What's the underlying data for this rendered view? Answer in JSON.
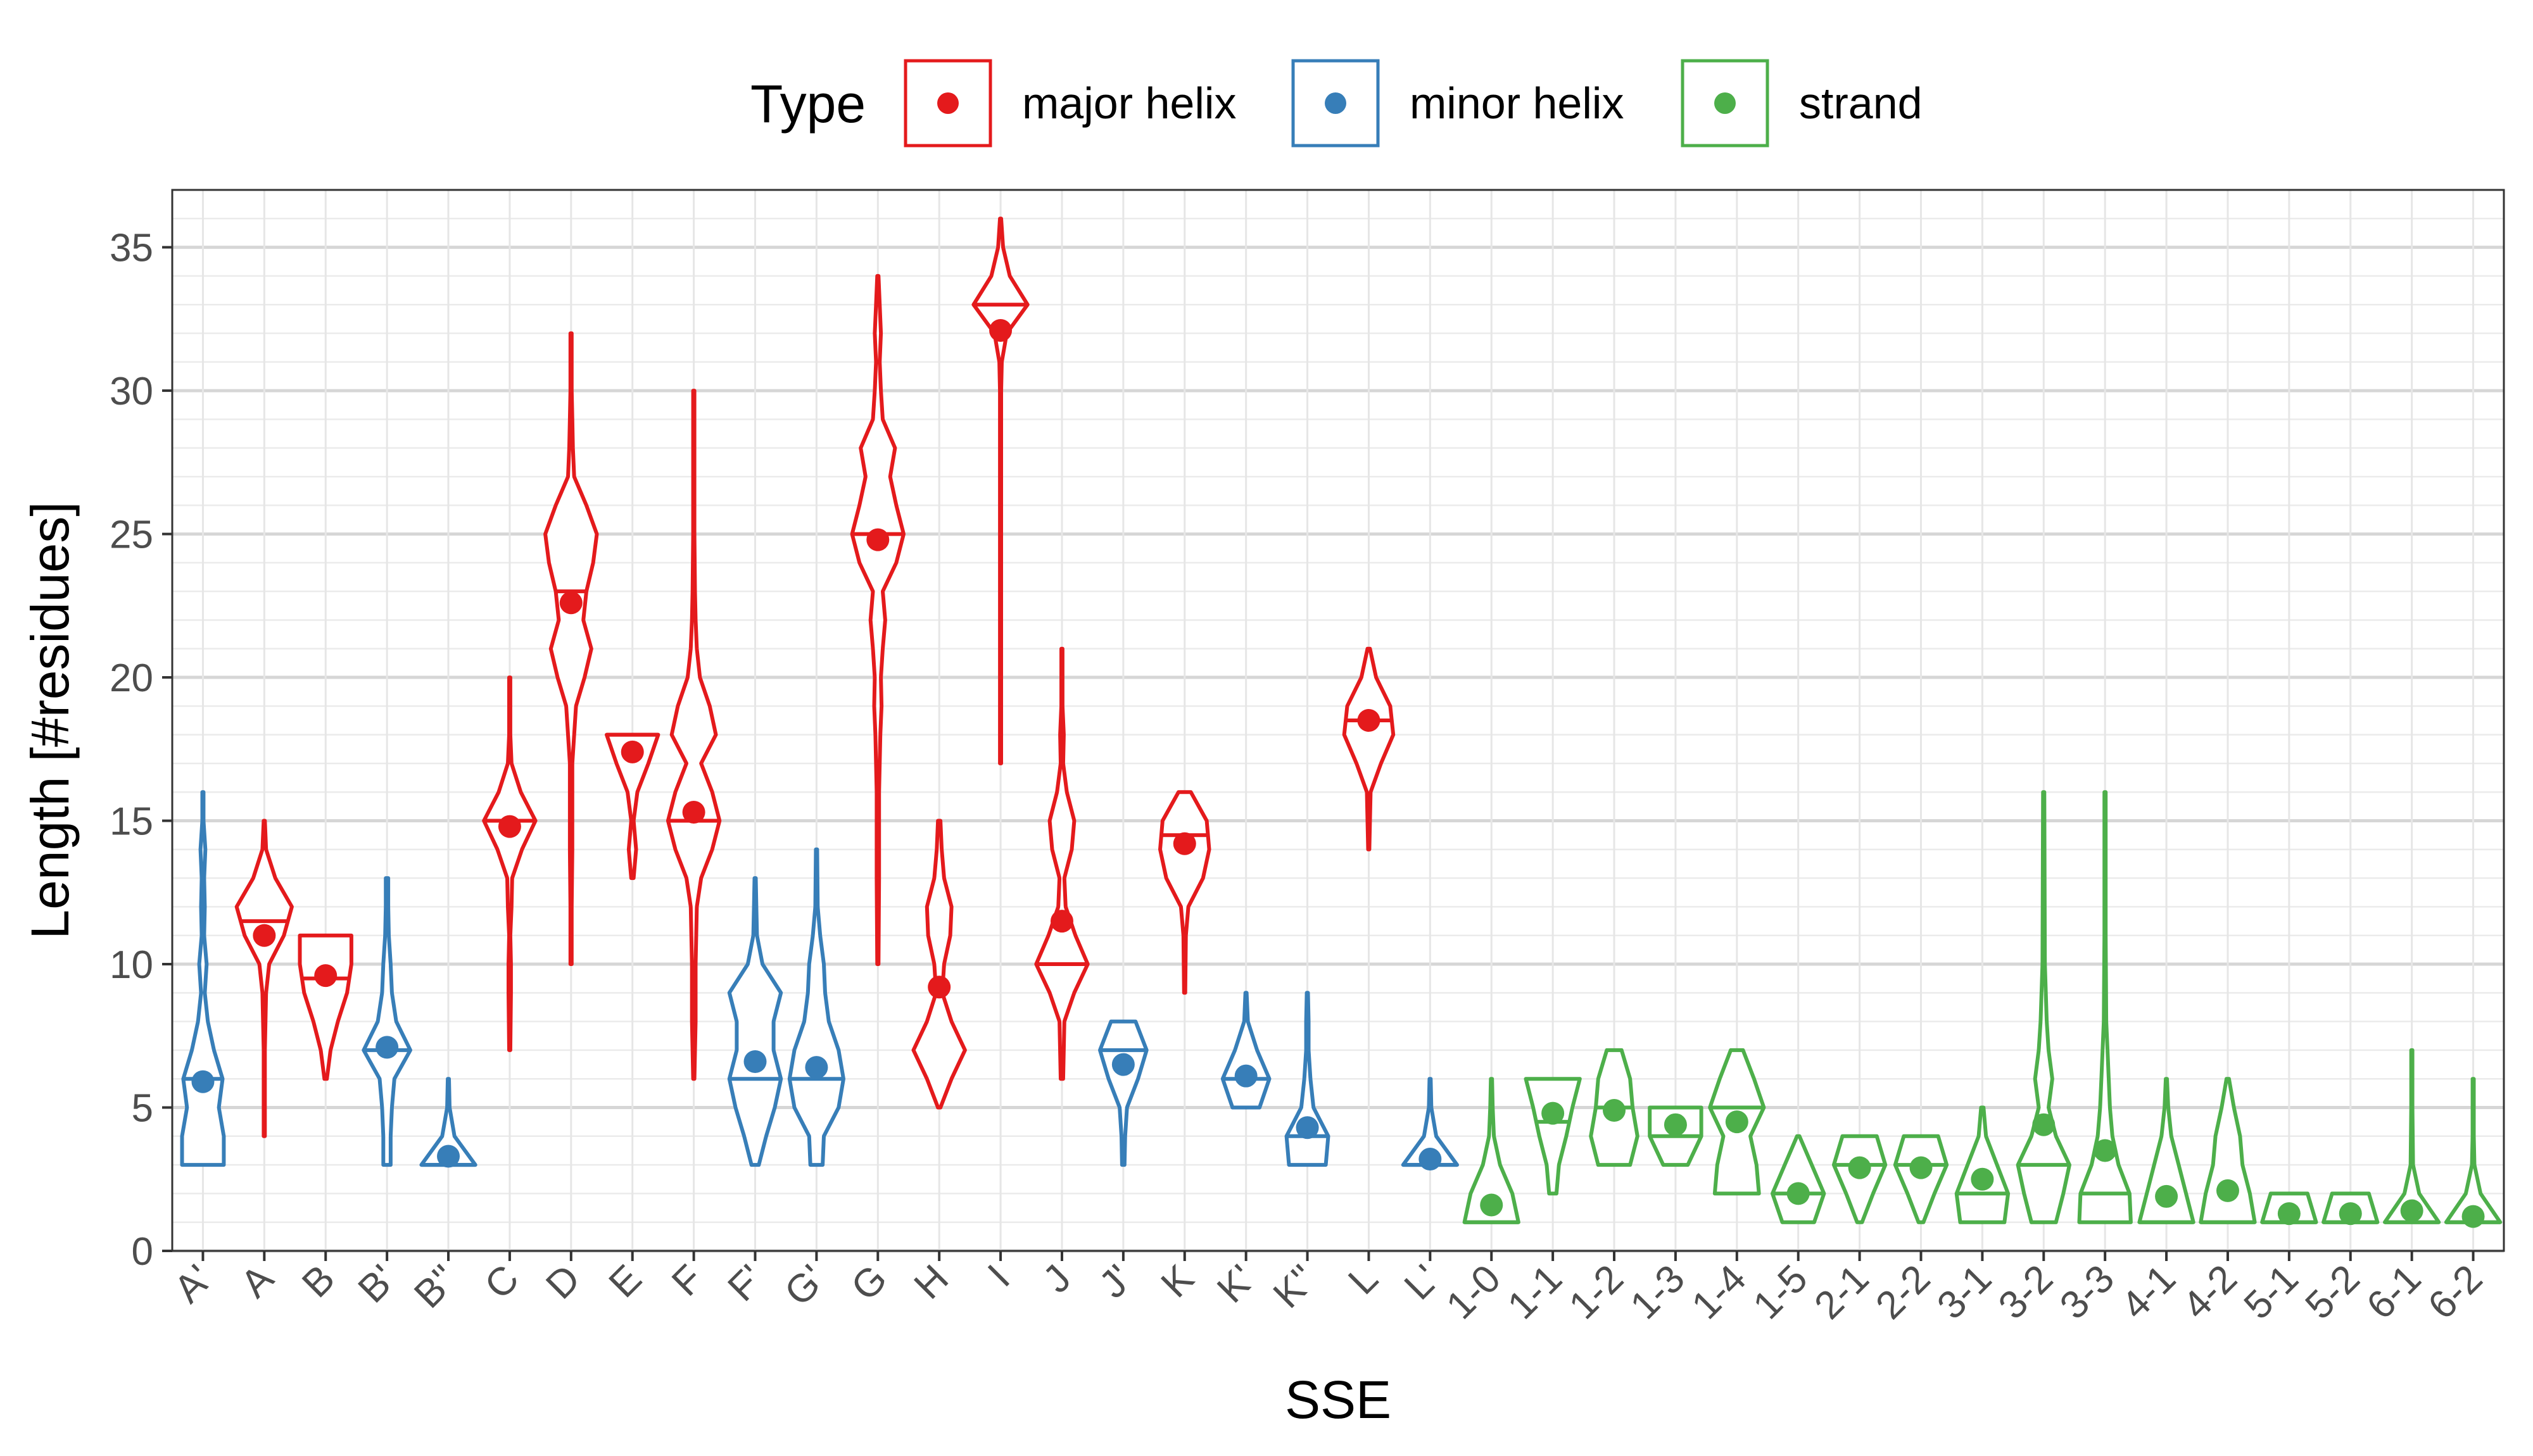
{
  "chart_data": {
    "type": "violin",
    "title": "",
    "xlabel": "SSE",
    "ylabel": "Length [#residues]",
    "ylim": [
      0,
      37
    ],
    "yticks": [
      0,
      5,
      10,
      15,
      20,
      25,
      30,
      35
    ],
    "grid": true,
    "legend": {
      "title": "Type",
      "position": "top",
      "entries": [
        {
          "label": "major helix",
          "color": "#E41A1C"
        },
        {
          "label": "minor helix",
          "color": "#377EB8"
        },
        {
          "label": "strand",
          "color": "#4DAF4A"
        }
      ]
    },
    "categories": [
      "A'",
      "A",
      "B",
      "B'",
      "B''",
      "C",
      "D",
      "E",
      "F",
      "F'",
      "G'",
      "G",
      "H",
      "I",
      "J",
      "J'",
      "K",
      "K'",
      "K''",
      "L",
      "L'",
      "1-0",
      "1-1",
      "1-2",
      "1-3",
      "1-4",
      "1-5",
      "2-1",
      "2-2",
      "3-1",
      "3-2",
      "3-3",
      "4-1",
      "4-2",
      "5-1",
      "5-2",
      "6-1",
      "6-2"
    ],
    "category_types": [
      "minor helix",
      "major helix",
      "major helix",
      "minor helix",
      "minor helix",
      "major helix",
      "major helix",
      "major helix",
      "major helix",
      "minor helix",
      "minor helix",
      "major helix",
      "major helix",
      "major helix",
      "major helix",
      "minor helix",
      "major helix",
      "minor helix",
      "minor helix",
      "major helix",
      "minor helix",
      "strand",
      "strand",
      "strand",
      "strand",
      "strand",
      "strand",
      "strand",
      "strand",
      "strand",
      "strand",
      "strand",
      "strand",
      "strand",
      "strand",
      "strand",
      "strand",
      "strand"
    ],
    "means": [
      5.9,
      11.0,
      9.6,
      7.1,
      3.3,
      14.8,
      22.6,
      17.4,
      15.3,
      6.6,
      6.4,
      24.8,
      9.2,
      32.1,
      11.5,
      6.5,
      14.2,
      6.1,
      4.3,
      18.5,
      3.2,
      1.6,
      4.8,
      4.9,
      4.4,
      4.5,
      2.0,
      2.9,
      2.9,
      2.5,
      4.4,
      3.5,
      1.9,
      2.1,
      1.3,
      1.3,
      1.4,
      1.2
    ],
    "medians": [
      6,
      11.5,
      9.5,
      7,
      3,
      15,
      23,
      18,
      15,
      6,
      6,
      25,
      9,
      33,
      10,
      7,
      14.5,
      6,
      4,
      18.5,
      3,
      1,
      4.5,
      5,
      4,
      5,
      2,
      3,
      3,
      2,
      3,
      2,
      1,
      1,
      1,
      1,
      1,
      1
    ],
    "violins": [
      [
        [
          3,
          0.34
        ],
        [
          4,
          0.34
        ],
        [
          5,
          0.26
        ],
        [
          6,
          0.32
        ],
        [
          7,
          0.18
        ],
        [
          8,
          0.08
        ],
        [
          9,
          0.03
        ],
        [
          10,
          0.06
        ],
        [
          11,
          0.02
        ],
        [
          12,
          0.03
        ],
        [
          13,
          0.02
        ],
        [
          14,
          0.04
        ],
        [
          15,
          0.01
        ],
        [
          16,
          0.01
        ]
      ],
      [
        [
          4,
          0.01
        ],
        [
          7,
          0.01
        ],
        [
          9,
          0.03
        ],
        [
          10,
          0.08
        ],
        [
          11,
          0.32
        ],
        [
          12,
          0.45
        ],
        [
          13,
          0.18
        ],
        [
          14,
          0.03
        ],
        [
          15,
          0.01
        ]
      ],
      [
        [
          6,
          0.02
        ],
        [
          7,
          0.08
        ],
        [
          8,
          0.2
        ],
        [
          9,
          0.35
        ],
        [
          10,
          0.42
        ],
        [
          11,
          0.42
        ]
      ],
      [
        [
          3,
          0.06
        ],
        [
          4,
          0.06
        ],
        [
          5,
          0.08
        ],
        [
          6,
          0.12
        ],
        [
          7,
          0.38
        ],
        [
          8,
          0.15
        ],
        [
          9,
          0.08
        ],
        [
          10,
          0.06
        ],
        [
          11,
          0.03
        ],
        [
          12,
          0.02
        ],
        [
          13,
          0.02
        ]
      ],
      [
        [
          3,
          0.44
        ],
        [
          4,
          0.1
        ],
        [
          5,
          0.02
        ],
        [
          6,
          0.01
        ]
      ],
      [
        [
          7,
          0.01
        ],
        [
          9,
          0.02
        ],
        [
          10,
          0.02
        ],
        [
          11,
          0.01
        ],
        [
          12,
          0.03
        ],
        [
          13,
          0.04
        ],
        [
          14,
          0.2
        ],
        [
          15,
          0.42
        ],
        [
          16,
          0.18
        ],
        [
          17,
          0.03
        ],
        [
          18,
          0.01
        ],
        [
          19,
          0.01
        ],
        [
          20,
          0.01
        ]
      ],
      [
        [
          10,
          0.01
        ],
        [
          12,
          0.01
        ],
        [
          14,
          0.02
        ],
        [
          17,
          0.02
        ],
        [
          19,
          0.08
        ],
        [
          20,
          0.22
        ],
        [
          21,
          0.33
        ],
        [
          22,
          0.2
        ],
        [
          23,
          0.25
        ],
        [
          24,
          0.36
        ],
        [
          25,
          0.42
        ],
        [
          26,
          0.25
        ],
        [
          27,
          0.05
        ],
        [
          28,
          0.03
        ],
        [
          29,
          0.02
        ],
        [
          30,
          0.01
        ],
        [
          32,
          0.01
        ]
      ],
      [
        [
          13,
          0.02
        ],
        [
          14,
          0.06
        ],
        [
          15,
          0.02
        ],
        [
          16,
          0.08
        ],
        [
          17,
          0.26
        ],
        [
          18,
          0.42
        ]
      ],
      [
        [
          6,
          0.01
        ],
        [
          8,
          0.03
        ],
        [
          10,
          0.03
        ],
        [
          12,
          0.05
        ],
        [
          13,
          0.12
        ],
        [
          14,
          0.3
        ],
        [
          15,
          0.42
        ],
        [
          16,
          0.3
        ],
        [
          17,
          0.12
        ],
        [
          18,
          0.36
        ],
        [
          19,
          0.26
        ],
        [
          20,
          0.1
        ],
        [
          21,
          0.05
        ],
        [
          22,
          0.03
        ],
        [
          23,
          0.02
        ],
        [
          25,
          0.01
        ],
        [
          30,
          0.01
        ]
      ],
      [
        [
          3,
          0.06
        ],
        [
          4,
          0.18
        ],
        [
          5,
          0.32
        ],
        [
          6,
          0.42
        ],
        [
          7,
          0.3
        ],
        [
          8,
          0.3
        ],
        [
          9,
          0.42
        ],
        [
          10,
          0.12
        ],
        [
          11,
          0.03
        ],
        [
          12,
          0.02
        ],
        [
          13,
          0.01
        ]
      ],
      [
        [
          3,
          0.1
        ],
        [
          4,
          0.12
        ],
        [
          5,
          0.36
        ],
        [
          6,
          0.44
        ],
        [
          7,
          0.36
        ],
        [
          8,
          0.2
        ],
        [
          9,
          0.14
        ],
        [
          10,
          0.12
        ],
        [
          11,
          0.06
        ],
        [
          12,
          0.02
        ],
        [
          14,
          0.01
        ]
      ],
      [
        [
          10,
          0.01
        ],
        [
          13,
          0.02
        ],
        [
          16,
          0.02
        ],
        [
          18,
          0.04
        ],
        [
          19,
          0.06
        ],
        [
          20,
          0.05
        ],
        [
          21,
          0.08
        ],
        [
          22,
          0.12
        ],
        [
          23,
          0.08
        ],
        [
          24,
          0.3
        ],
        [
          25,
          0.42
        ],
        [
          26,
          0.3
        ],
        [
          27,
          0.2
        ],
        [
          28,
          0.28
        ],
        [
          29,
          0.08
        ],
        [
          30,
          0.05
        ],
        [
          31,
          0.03
        ],
        [
          32,
          0.05
        ],
        [
          33,
          0.03
        ],
        [
          34,
          0.01
        ]
      ],
      [
        [
          5,
          0.02
        ],
        [
          6,
          0.2
        ],
        [
          7,
          0.42
        ],
        [
          8,
          0.2
        ],
        [
          9,
          0.05
        ],
        [
          10,
          0.08
        ],
        [
          11,
          0.18
        ],
        [
          12,
          0.2
        ],
        [
          13,
          0.08
        ],
        [
          14,
          0.04
        ],
        [
          15,
          0.02
        ]
      ],
      [
        [
          17,
          0.01
        ],
        [
          20,
          0.01
        ],
        [
          25,
          0.01
        ],
        [
          28,
          0.01
        ],
        [
          30,
          0.01
        ],
        [
          31,
          0.02
        ],
        [
          32,
          0.1
        ],
        [
          33,
          0.44
        ],
        [
          34,
          0.15
        ],
        [
          35,
          0.04
        ],
        [
          36,
          0.01
        ]
      ],
      [
        [
          6,
          0.02
        ],
        [
          8,
          0.04
        ],
        [
          9,
          0.2
        ],
        [
          10,
          0.42
        ],
        [
          11,
          0.22
        ],
        [
          12,
          0.06
        ],
        [
          13,
          0.04
        ],
        [
          14,
          0.16
        ],
        [
          15,
          0.2
        ],
        [
          16,
          0.08
        ],
        [
          17,
          0.02
        ],
        [
          18,
          0.03
        ],
        [
          19,
          0.01
        ],
        [
          21,
          0.01
        ]
      ],
      [
        [
          3,
          0.02
        ],
        [
          4,
          0.03
        ],
        [
          5,
          0.06
        ],
        [
          6,
          0.24
        ],
        [
          7,
          0.38
        ],
        [
          8,
          0.2
        ]
      ],
      [
        [
          9,
          0.01
        ],
        [
          11,
          0.02
        ],
        [
          12,
          0.06
        ],
        [
          13,
          0.3
        ],
        [
          14,
          0.4
        ],
        [
          15,
          0.36
        ],
        [
          16,
          0.1
        ]
      ],
      [
        [
          5,
          0.22
        ],
        [
          6,
          0.38
        ],
        [
          7,
          0.18
        ],
        [
          8,
          0.03
        ],
        [
          9,
          0.01
        ]
      ],
      [
        [
          3,
          0.3
        ],
        [
          4,
          0.34
        ],
        [
          5,
          0.1
        ],
        [
          6,
          0.05
        ],
        [
          7,
          0.02
        ],
        [
          8,
          0.02
        ],
        [
          9,
          0.01
        ]
      ],
      [
        [
          14,
          0.01
        ],
        [
          16,
          0.03
        ],
        [
          17,
          0.2
        ],
        [
          18,
          0.4
        ],
        [
          19,
          0.35
        ],
        [
          20,
          0.12
        ],
        [
          21,
          0.02
        ]
      ],
      [
        [
          3,
          0.44
        ],
        [
          4,
          0.1
        ],
        [
          5,
          0.02
        ],
        [
          6,
          0.01
        ]
      ],
      [
        [
          1,
          0.44
        ],
        [
          2,
          0.34
        ],
        [
          3,
          0.14
        ],
        [
          4,
          0.04
        ],
        [
          5,
          0.02
        ],
        [
          6,
          0.01
        ]
      ],
      [
        [
          2,
          0.06
        ],
        [
          3,
          0.1
        ],
        [
          4,
          0.22
        ],
        [
          5,
          0.32
        ],
        [
          6,
          0.44
        ]
      ],
      [
        [
          3,
          0.26
        ],
        [
          4,
          0.38
        ],
        [
          5,
          0.3
        ],
        [
          6,
          0.26
        ],
        [
          7,
          0.12
        ]
      ],
      [
        [
          3,
          0.2
        ],
        [
          4,
          0.42
        ],
        [
          5,
          0.42
        ]
      ],
      [
        [
          2,
          0.36
        ],
        [
          3,
          0.32
        ],
        [
          4,
          0.22
        ],
        [
          5,
          0.44
        ],
        [
          6,
          0.28
        ],
        [
          7,
          0.1
        ]
      ],
      [
        [
          1,
          0.26
        ],
        [
          2,
          0.42
        ],
        [
          3,
          0.22
        ],
        [
          4,
          0.02
        ]
      ],
      [
        [
          1,
          0.04
        ],
        [
          2,
          0.22
        ],
        [
          3,
          0.42
        ],
        [
          4,
          0.28
        ]
      ],
      [
        [
          1,
          0.04
        ],
        [
          2,
          0.22
        ],
        [
          3,
          0.42
        ],
        [
          4,
          0.28
        ]
      ],
      [
        [
          1,
          0.36
        ],
        [
          2,
          0.42
        ],
        [
          3,
          0.24
        ],
        [
          4,
          0.06
        ],
        [
          5,
          0.02
        ]
      ],
      [
        [
          1,
          0.2
        ],
        [
          2,
          0.32
        ],
        [
          3,
          0.42
        ],
        [
          4,
          0.2
        ],
        [
          5,
          0.08
        ],
        [
          6,
          0.14
        ],
        [
          7,
          0.08
        ],
        [
          8,
          0.05
        ],
        [
          10,
          0.02
        ],
        [
          16,
          0.01
        ]
      ],
      [
        [
          1,
          0.42
        ],
        [
          2,
          0.4
        ],
        [
          3,
          0.22
        ],
        [
          4,
          0.12
        ],
        [
          5,
          0.08
        ],
        [
          6,
          0.06
        ],
        [
          7,
          0.04
        ],
        [
          8,
          0.02
        ],
        [
          11,
          0.01
        ],
        [
          16,
          0.01
        ]
      ],
      [
        [
          1,
          0.44
        ],
        [
          2,
          0.32
        ],
        [
          3,
          0.2
        ],
        [
          4,
          0.08
        ],
        [
          5,
          0.03
        ],
        [
          6,
          0.01
        ]
      ],
      [
        [
          1,
          0.44
        ],
        [
          2,
          0.36
        ],
        [
          3,
          0.24
        ],
        [
          4,
          0.2
        ],
        [
          5,
          0.1
        ],
        [
          6,
          0.02
        ]
      ],
      [
        [
          1,
          0.44
        ],
        [
          2,
          0.3
        ]
      ],
      [
        [
          1,
          0.44
        ],
        [
          2,
          0.3
        ]
      ],
      [
        [
          1,
          0.44
        ],
        [
          2,
          0.12
        ],
        [
          3,
          0.02
        ],
        [
          5,
          0.01
        ],
        [
          7,
          0.01
        ]
      ],
      [
        [
          1,
          0.44
        ],
        [
          2,
          0.12
        ],
        [
          3,
          0.02
        ],
        [
          4,
          0.01
        ],
        [
          6,
          0.01
        ]
      ]
    ],
    "colors": {
      "major helix": "#E41A1C",
      "minor helix": "#377EB8",
      "strand": "#4DAF4A"
    }
  }
}
